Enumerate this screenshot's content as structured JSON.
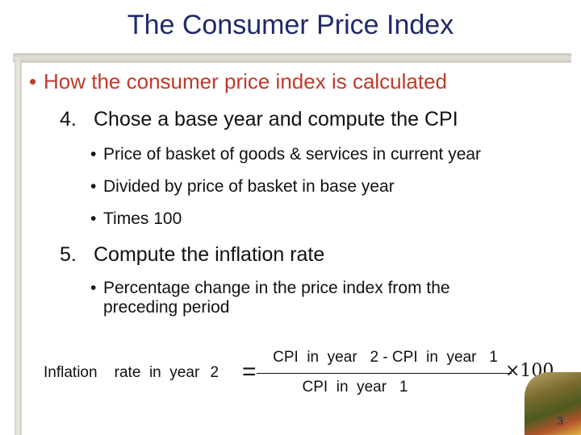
{
  "slide": {
    "title": "The Consumer Price Index",
    "bullet": "How the consumer price index is calculated",
    "items": [
      {
        "number": "4.",
        "text": "Chose a base year and compute the CPI",
        "subs": [
          "Price of basket of goods & services in current year",
          "Divided by price of basket in base year",
          "Times 100"
        ]
      },
      {
        "number": "5.",
        "text": "Compute the inflation rate",
        "subs": [
          "Percentage change in the price index from the",
          "preceding period"
        ]
      }
    ],
    "formula": {
      "lhs": "Inflation    rate  in  year",
      "lhs_year": "2",
      "equals": "=",
      "numerator": "CPI  in  year   2 - CPI  in  year   1",
      "denominator": "CPI  in  year   1",
      "times": "×100"
    },
    "page_number": "3",
    "colors": {
      "title": "#1f2a6b",
      "bullet": "#c0392b",
      "body": "#111111"
    }
  }
}
